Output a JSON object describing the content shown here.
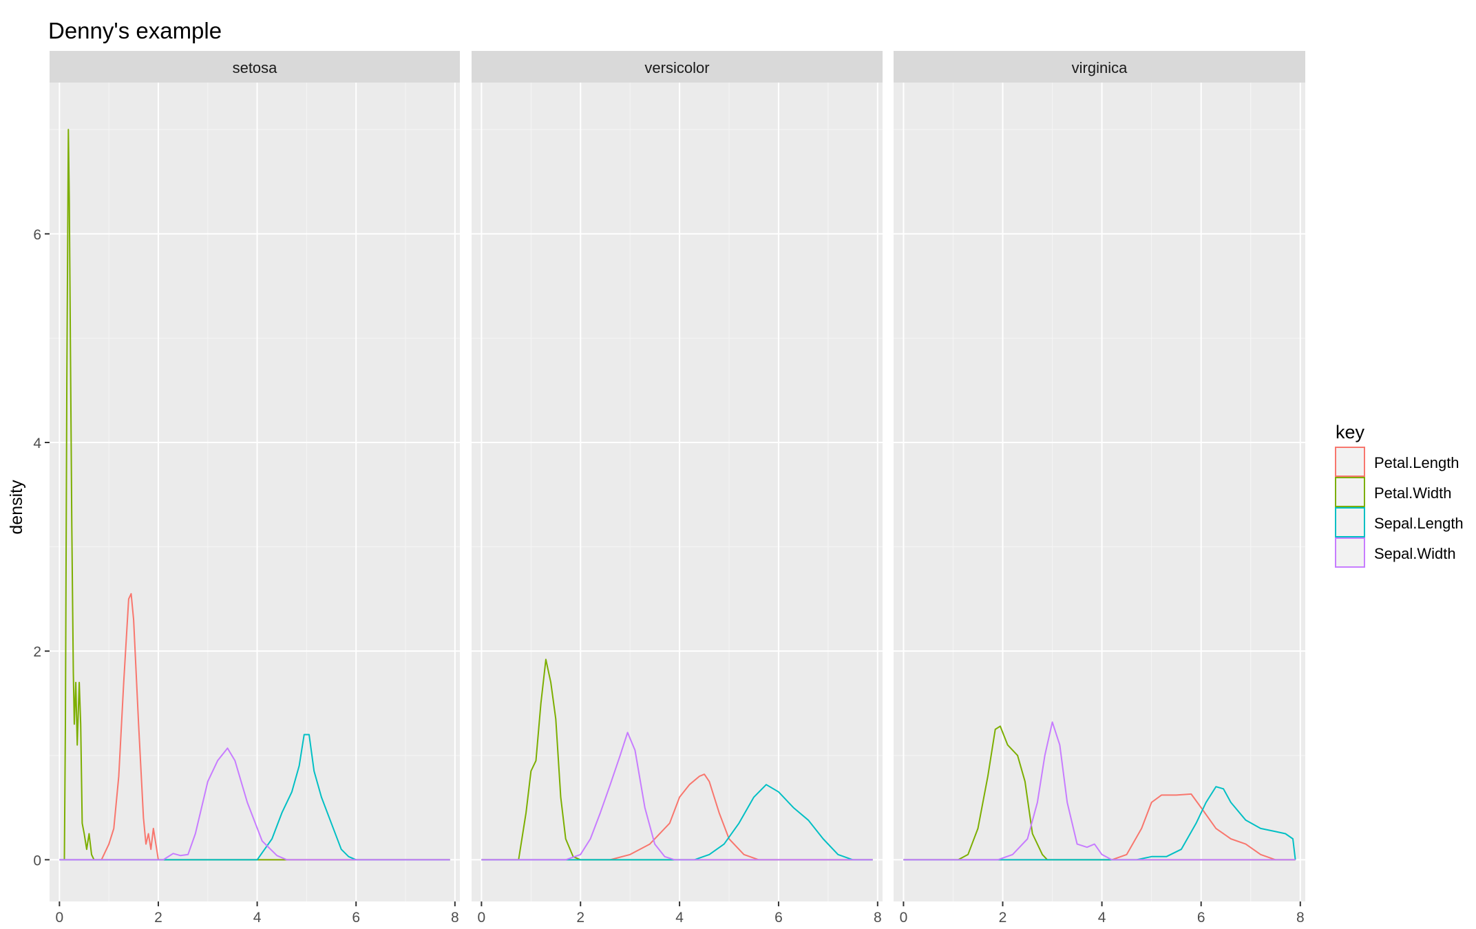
{
  "chart_data": {
    "type": "line",
    "title": "Denny's example",
    "xlabel": "",
    "ylabel": "density",
    "xlim": [
      -0.2,
      8.1
    ],
    "ylim": [
      -0.4,
      7.45
    ],
    "x_ticks": [
      0,
      2,
      4,
      6,
      8
    ],
    "y_ticks": [
      0,
      2,
      4,
      6
    ],
    "grid": true,
    "legend": {
      "title": "key",
      "position": "right",
      "entries": [
        "Petal.Length",
        "Petal.Width",
        "Sepal.Length",
        "Sepal.Width"
      ]
    },
    "colors": {
      "Petal.Length": "#F8766D",
      "Petal.Width": "#7CAE00",
      "Sepal.Length": "#00BFC4",
      "Sepal.Width": "#C77CFF"
    },
    "facets": [
      {
        "label": "setosa",
        "series": [
          {
            "name": "Petal.Length",
            "x": [
              0.0,
              0.85,
              1.0,
              1.1,
              1.2,
              1.3,
              1.4,
              1.45,
              1.5,
              1.6,
              1.7,
              1.75,
              1.8,
              1.85,
              1.9,
              1.95,
              2.0,
              2.1,
              7.9
            ],
            "y": [
              0,
              0,
              0.15,
              0.3,
              0.8,
              1.7,
              2.5,
              2.55,
              2.3,
              1.3,
              0.4,
              0.15,
              0.25,
              0.1,
              0.3,
              0.15,
              0,
              0,
              0
            ]
          },
          {
            "name": "Petal.Width",
            "x": [
              0.1,
              0.12,
              0.15,
              0.18,
              0.2,
              0.22,
              0.25,
              0.28,
              0.3,
              0.33,
              0.36,
              0.4,
              0.43,
              0.46,
              0.5,
              0.55,
              0.6,
              0.65,
              0.7,
              7.9
            ],
            "y": [
              0,
              1.3,
              4.6,
              7.0,
              6.3,
              5.0,
              3.2,
              1.8,
              1.3,
              1.7,
              1.1,
              1.7,
              1.3,
              0.35,
              0.25,
              0.1,
              0.25,
              0.05,
              0,
              0
            ]
          },
          {
            "name": "Sepal.Length",
            "x": [
              0.0,
              4.0,
              4.3,
              4.5,
              4.7,
              4.85,
              4.95,
              5.05,
              5.15,
              5.3,
              5.5,
              5.7,
              5.85,
              6.0,
              7.9
            ],
            "y": [
              0,
              0,
              0.2,
              0.45,
              0.65,
              0.9,
              1.2,
              1.2,
              0.85,
              0.6,
              0.35,
              0.1,
              0.03,
              0,
              0
            ]
          },
          {
            "name": "Sepal.Width",
            "x": [
              0.0,
              2.1,
              2.3,
              2.45,
              2.6,
              2.75,
              3.0,
              3.2,
              3.4,
              3.55,
              3.8,
              4.1,
              4.4,
              4.6,
              7.9
            ],
            "y": [
              0,
              0,
              0.06,
              0.04,
              0.05,
              0.25,
              0.75,
              0.95,
              1.07,
              0.95,
              0.55,
              0.18,
              0.04,
              0,
              0
            ]
          }
        ]
      },
      {
        "label": "versicolor",
        "series": [
          {
            "name": "Petal.Length",
            "x": [
              0.0,
              2.6,
              3.0,
              3.4,
              3.8,
              4.0,
              4.2,
              4.4,
              4.5,
              4.6,
              4.8,
              5.0,
              5.3,
              5.6,
              7.9
            ],
            "y": [
              0,
              0,
              0.05,
              0.15,
              0.35,
              0.6,
              0.72,
              0.8,
              0.82,
              0.75,
              0.45,
              0.2,
              0.05,
              0,
              0
            ]
          },
          {
            "name": "Petal.Width",
            "x": [
              0.0,
              0.75,
              0.9,
              1.0,
              1.1,
              1.2,
              1.3,
              1.4,
              1.5,
              1.6,
              1.7,
              1.85,
              2.0,
              7.9
            ],
            "y": [
              0,
              0,
              0.45,
              0.85,
              0.95,
              1.5,
              1.92,
              1.7,
              1.35,
              0.6,
              0.2,
              0.03,
              0,
              0
            ]
          },
          {
            "name": "Sepal.Length",
            "x": [
              0.0,
              4.3,
              4.6,
              4.9,
              5.2,
              5.5,
              5.75,
              6.0,
              6.3,
              6.6,
              6.9,
              7.2,
              7.5,
              7.9
            ],
            "y": [
              0,
              0,
              0.05,
              0.15,
              0.35,
              0.6,
              0.72,
              0.65,
              0.5,
              0.38,
              0.2,
              0.05,
              0,
              0
            ]
          },
          {
            "name": "Sepal.Width",
            "x": [
              0.0,
              1.7,
              2.0,
              2.2,
              2.4,
              2.6,
              2.8,
              2.95,
              3.1,
              3.3,
              3.5,
              3.7,
              3.9,
              7.9
            ],
            "y": [
              0,
              0,
              0.05,
              0.2,
              0.45,
              0.72,
              1.0,
              1.22,
              1.05,
              0.5,
              0.15,
              0.03,
              0,
              0
            ]
          }
        ]
      },
      {
        "label": "virginica",
        "series": [
          {
            "name": "Petal.Length",
            "x": [
              0.0,
              4.2,
              4.5,
              4.8,
              5.0,
              5.2,
              5.5,
              5.8,
              6.0,
              6.3,
              6.6,
              6.9,
              7.2,
              7.5,
              7.9
            ],
            "y": [
              0,
              0,
              0.05,
              0.3,
              0.55,
              0.62,
              0.62,
              0.63,
              0.5,
              0.3,
              0.2,
              0.15,
              0.05,
              0,
              0
            ]
          },
          {
            "name": "Petal.Width",
            "x": [
              0.0,
              1.1,
              1.3,
              1.5,
              1.7,
              1.85,
              1.95,
              2.1,
              2.3,
              2.45,
              2.6,
              2.8,
              2.9,
              7.9
            ],
            "y": [
              0,
              0,
              0.05,
              0.3,
              0.8,
              1.25,
              1.28,
              1.1,
              1.0,
              0.75,
              0.25,
              0.05,
              0,
              0
            ]
          },
          {
            "name": "Sepal.Length",
            "x": [
              0.0,
              4.7,
              5.0,
              5.3,
              5.6,
              5.9,
              6.1,
              6.3,
              6.45,
              6.6,
              6.9,
              7.2,
              7.5,
              7.7,
              7.85,
              7.9
            ],
            "y": [
              0,
              0,
              0.03,
              0.03,
              0.1,
              0.35,
              0.55,
              0.7,
              0.68,
              0.55,
              0.38,
              0.3,
              0.27,
              0.25,
              0.2,
              0
            ]
          },
          {
            "name": "Sepal.Width",
            "x": [
              0.0,
              1.9,
              2.2,
              2.5,
              2.7,
              2.85,
              3.0,
              3.15,
              3.3,
              3.5,
              3.7,
              3.85,
              4.0,
              4.2,
              7.9
            ],
            "y": [
              0,
              0,
              0.05,
              0.2,
              0.55,
              1.0,
              1.32,
              1.1,
              0.55,
              0.15,
              0.12,
              0.15,
              0.05,
              0,
              0
            ]
          }
        ]
      }
    ]
  }
}
